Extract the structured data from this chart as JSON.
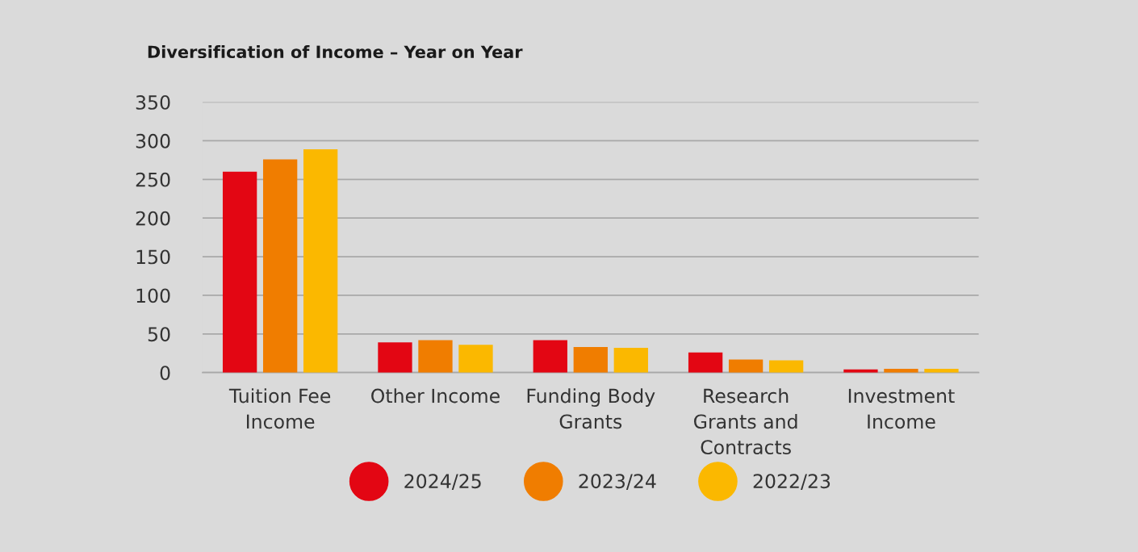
{
  "chart_data": {
    "type": "bar",
    "title": "Diversification of Income – Year on Year",
    "categories": [
      "Tuition Fee\nIncome",
      "Other Income",
      "Funding Body\nGrants",
      "Research\nGrants and\nContracts",
      "Investment\nIncome"
    ],
    "series": [
      {
        "name": "2024/25",
        "color": "#e30613",
        "values": [
          260,
          39,
          42,
          26,
          4
        ]
      },
      {
        "name": "2023/24",
        "color": "#f07d00",
        "values": [
          276,
          42,
          33,
          17,
          5
        ]
      },
      {
        "name": "2022/23",
        "color": "#fbb800",
        "values": [
          289,
          36,
          32,
          16,
          5
        ]
      }
    ],
    "ylim": [
      0,
      350
    ],
    "yticks": [
      0,
      50,
      100,
      150,
      200,
      250,
      300,
      350
    ],
    "grid": "y",
    "legend": "bottom"
  }
}
